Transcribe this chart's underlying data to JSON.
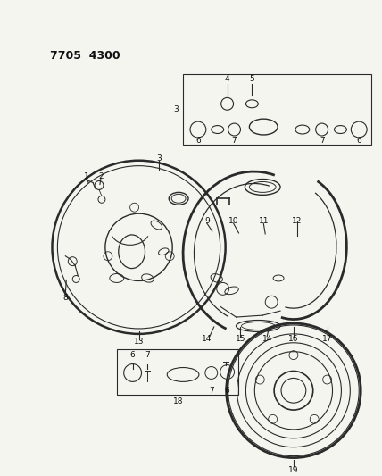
{
  "title": "7705  4300",
  "background_color": "#f5f5f0",
  "line_color": "#2a2a2a",
  "text_color": "#111111",
  "fig_width": 4.28,
  "fig_height": 5.33,
  "dpi": 100
}
